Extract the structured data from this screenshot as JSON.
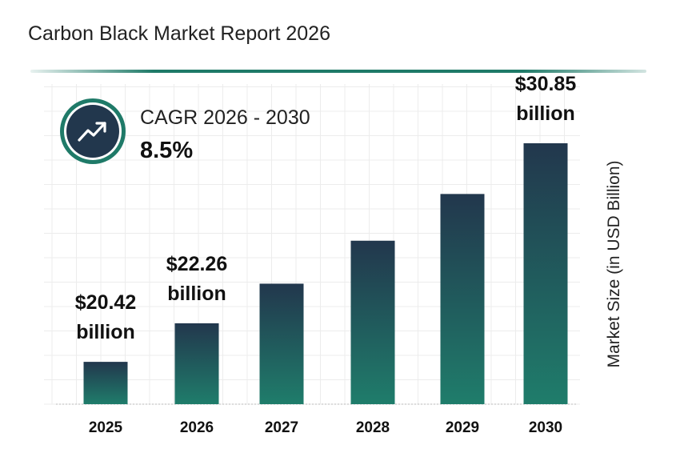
{
  "header": {
    "title": "Carbon Black Market Report 2026"
  },
  "cagr": {
    "label": "CAGR 2026 - 2030",
    "value": "8.5%",
    "icon": "trending-up-icon"
  },
  "colors": {
    "bar_top": "#22374d",
    "bar_bottom": "#1f7d6b",
    "accent": "#1f7a68"
  },
  "chart_data": {
    "type": "bar",
    "categories": [
      "2025",
      "2026",
      "2027",
      "2028",
      "2029",
      "2030"
    ],
    "values": [
      20.42,
      22.26,
      24.15,
      26.2,
      28.43,
      30.85
    ],
    "data_labels": [
      "$20.42 billion",
      "$22.26 billion",
      "",
      "",
      "",
      "$30.85 billion"
    ],
    "data_labels_lines": [
      [
        "$20.42",
        "billion"
      ],
      [
        "$22.26",
        "billion"
      ],
      [],
      [],
      [],
      [
        "$30.85",
        "billion"
      ]
    ],
    "xlabel": "",
    "ylabel": "Market Size (in USD Billion)",
    "grid": true,
    "title": "Carbon Black Market Report 2026"
  }
}
